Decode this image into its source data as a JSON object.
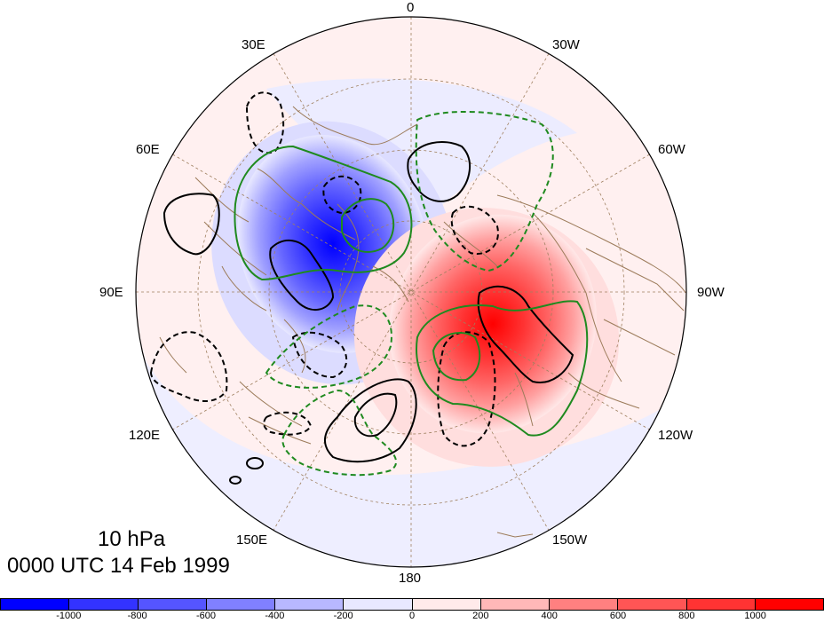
{
  "title": {
    "level": "10 hPa",
    "time": "0000 UTC 14 Feb 1999"
  },
  "longitude_labels": {
    "lon_0": "0",
    "lon_30w": "30W",
    "lon_60w": "60W",
    "lon_90w": "90W",
    "lon_120w": "120W",
    "lon_150w": "150W",
    "lon_180": "180",
    "lon_150e": "150E",
    "lon_120e": "120E",
    "lon_90e": "90E",
    "lon_60e": "60E",
    "lon_30e": "30E"
  },
  "colorbar": {
    "colors": [
      "#0000ff",
      "#3333ff",
      "#5555ff",
      "#8080ff",
      "#b8b8ff",
      "#e8e8ff",
      "#ffeaea",
      "#ffb8b8",
      "#ff8080",
      "#ff5555",
      "#ff3333",
      "#ff0000"
    ],
    "ticks": [
      "-1000",
      "-800",
      "-600",
      "-400",
      "-200",
      "0",
      "200",
      "400",
      "600",
      "800",
      "1000"
    ]
  },
  "colors": {
    "contour_black": "#000000",
    "contour_green": "#1f8a1f",
    "coastline": "#9c7b5a",
    "graticule": "#a08060"
  }
}
